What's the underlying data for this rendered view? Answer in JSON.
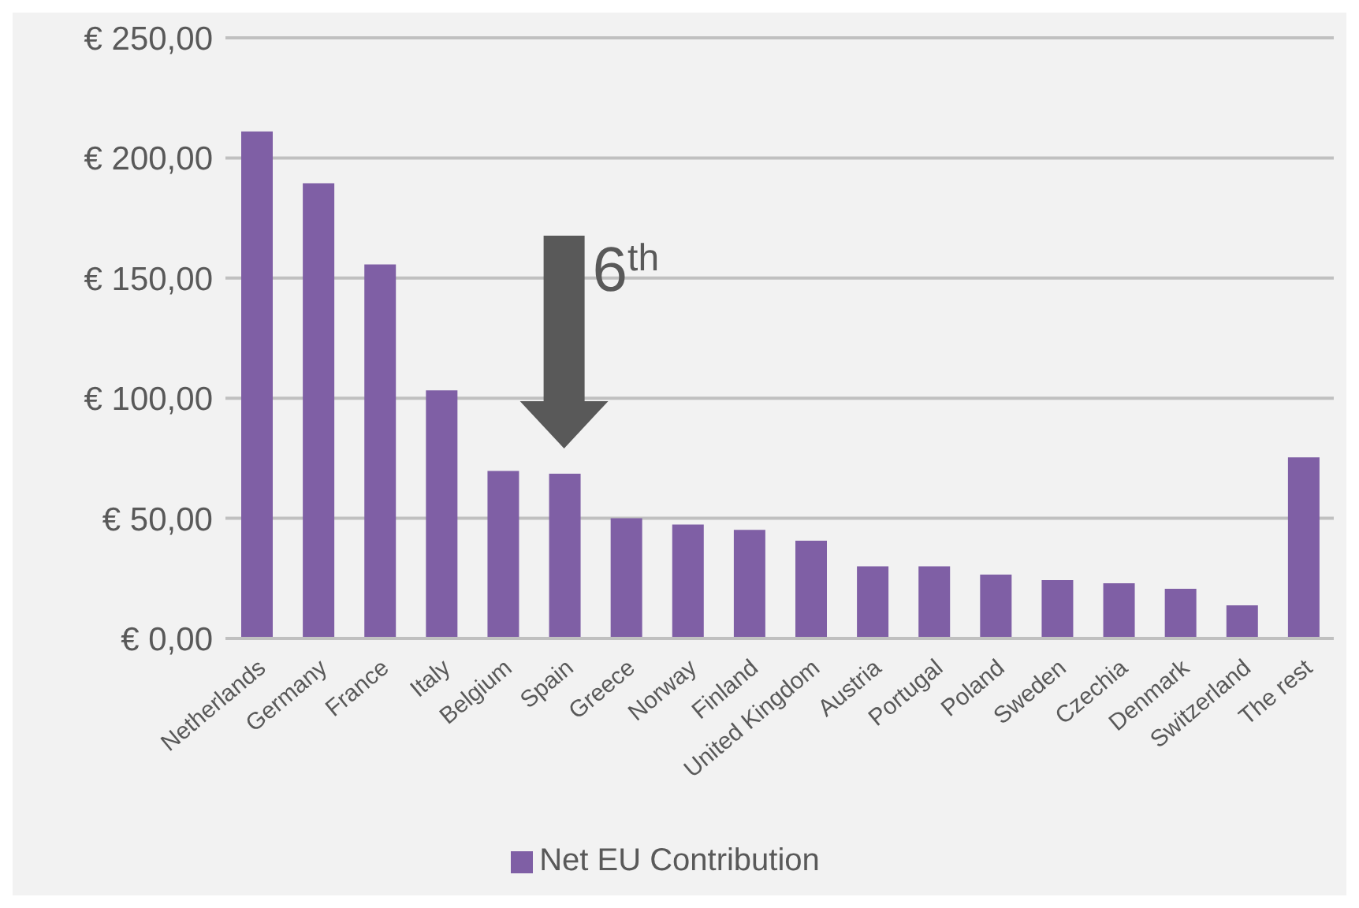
{
  "chart_data": {
    "type": "bar",
    "categories": [
      "Netherlands",
      "Germany",
      "France",
      "Italy",
      "Belgium",
      "Spain",
      "Greece",
      "Norway",
      "Finland",
      "United Kingdom",
      "Austria",
      "Portugal",
      "Poland",
      "Sweden",
      "Czechia",
      "Denmark",
      "Switzerland",
      "The rest"
    ],
    "series": [
      {
        "name": "Net EU Contribution",
        "color": "#7f5fa5",
        "values": [
          211,
          189.5,
          155.7,
          103.3,
          69.7,
          68.6,
          50,
          47.4,
          45.2,
          40.7,
          30,
          30,
          26.6,
          24.3,
          23,
          20.7,
          13.8,
          75.4
        ]
      }
    ],
    "ylim": [
      0,
      250
    ],
    "yticks": [
      {
        "value": 0,
        "label": "€ 0,00"
      },
      {
        "value": 50,
        "label": "€ 50,00"
      },
      {
        "value": 100,
        "label": "€ 100,00"
      },
      {
        "value": 150,
        "label": "€ 150,00"
      },
      {
        "value": 200,
        "label": "€ 200,00"
      },
      {
        "value": 250,
        "label": "€ 250,00"
      }
    ],
    "grid": "y",
    "legend": "bottom",
    "annotations": [
      {
        "text": "6$^{th}$",
        "x": "Spain",
        "y": 68.6
      }
    ]
  }
}
